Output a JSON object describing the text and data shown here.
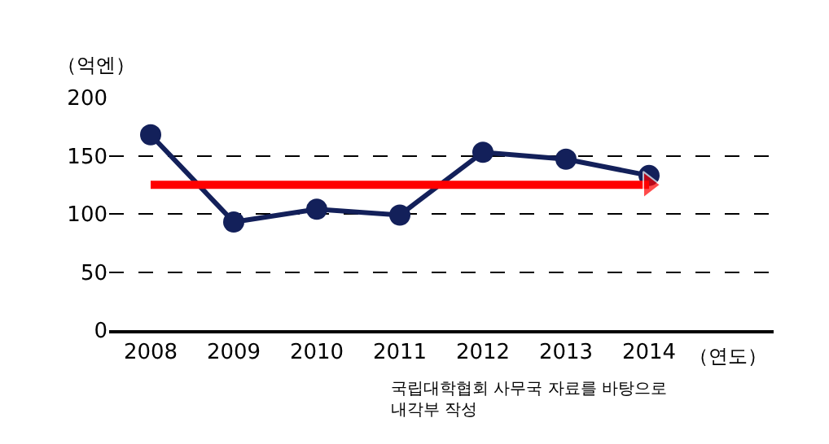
{
  "chart_data": {
    "type": "line",
    "xlabel": "（연도）",
    "ylabel": "（억엔）",
    "categories": [
      "2008",
      "2009",
      "2010",
      "2011",
      "2012",
      "2013",
      "2014"
    ],
    "series": [
      {
        "color": "#13205a",
        "values": [
          168,
          93,
          104,
          99,
          153,
          147,
          133
        ],
        "marker": "circle"
      },
      {
        "color": "#ff0000",
        "values": [
          125,
          null,
          null,
          null,
          null,
          null,
          125
        ],
        "marker": "triangle"
      }
    ],
    "ylim": [
      0,
      200
    ],
    "yticks": [
      0,
      50,
      100,
      150,
      200
    ],
    "grid": "y",
    "legend": false,
    "annotations": [
      "국립대학협회 사무국 자료를 바탕으로\n내각부 작성"
    ]
  }
}
